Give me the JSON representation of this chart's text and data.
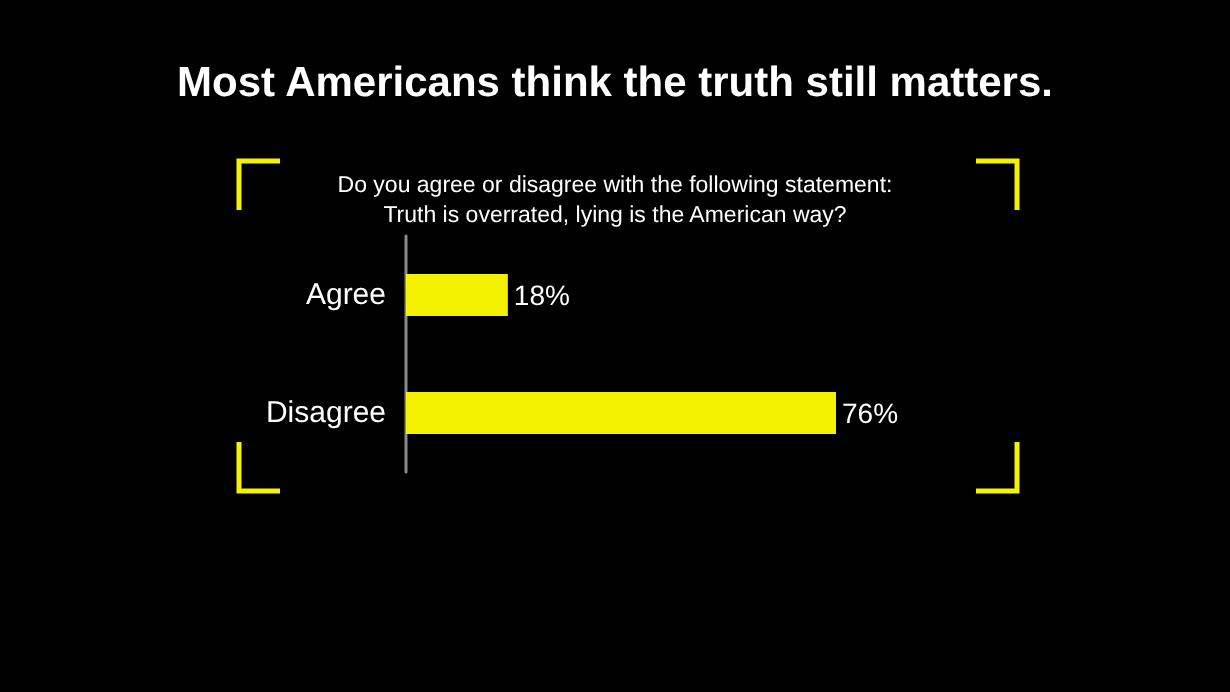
{
  "chart_data": {
    "type": "bar",
    "orientation": "horizontal",
    "title": "Most Americans think the truth still matters.",
    "subtitle": "Do you agree or disagree with the following statement: Truth is overrated, lying is the American way?",
    "categories": [
      "Agree",
      "Disagree"
    ],
    "values": [
      18,
      76
    ],
    "value_labels": [
      "18%",
      "76%"
    ],
    "color": "#f5f200"
  }
}
